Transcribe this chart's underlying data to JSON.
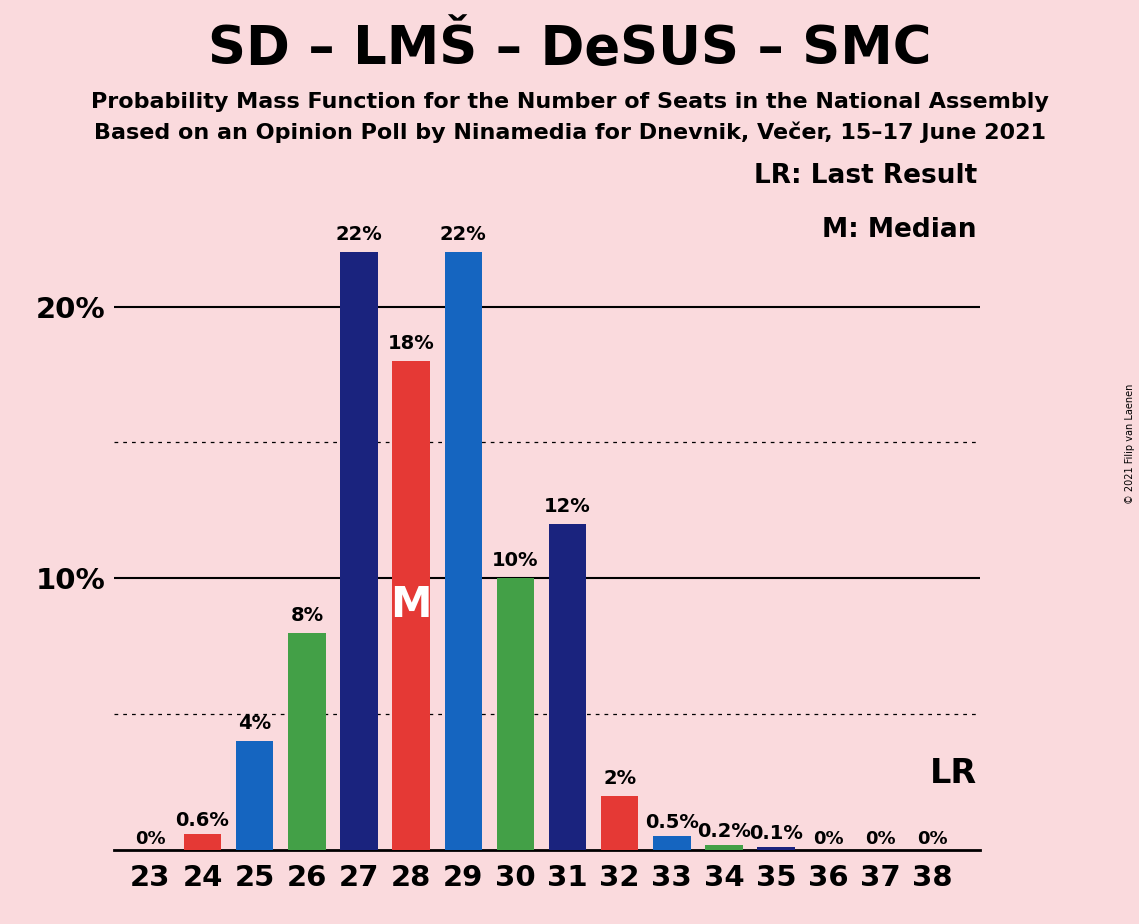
{
  "title": "SD – LMŠ – DeSUS – SMC",
  "subtitle1": "Probability Mass Function for the Number of Seats in the National Assembly",
  "subtitle2": "Based on an Opinion Poll by Ninamedia for Dnevnik, Večer, 15–17 June 2021",
  "copyright": "© 2021 Filip van Laenen",
  "seats": [
    23,
    24,
    25,
    26,
    27,
    28,
    29,
    30,
    31,
    32,
    33,
    34,
    35,
    36,
    37,
    38
  ],
  "values": [
    0.0,
    0.6,
    4.0,
    8.0,
    22.0,
    18.0,
    22.0,
    10.0,
    12.0,
    2.0,
    0.5,
    0.2,
    0.1,
    0.0,
    0.0,
    0.0
  ],
  "labels": [
    "0%",
    "0.6%",
    "4%",
    "8%",
    "22%",
    "18%",
    "22%",
    "10%",
    "12%",
    "2%",
    "0.5%",
    "0.2%",
    "0.1%",
    "0%",
    "0%",
    "0%"
  ],
  "colors": [
    "#1a237e",
    "#e53935",
    "#1565c0",
    "#43a047",
    "#1a237e",
    "#e53935",
    "#1565c0",
    "#43a047",
    "#1a237e",
    "#e53935",
    "#1565c0",
    "#43a047",
    "#1a237e",
    "#1565c0",
    "#1a237e",
    "#1a237e"
  ],
  "median_seat": 28,
  "background_color": "#fadadd",
  "bar_width": 0.72,
  "title_fontsize": 38,
  "subtitle_fontsize": 16,
  "tick_fontsize": 21,
  "label_fontsize": 14,
  "legend_fontsize": 19,
  "lr_fontsize": 24
}
